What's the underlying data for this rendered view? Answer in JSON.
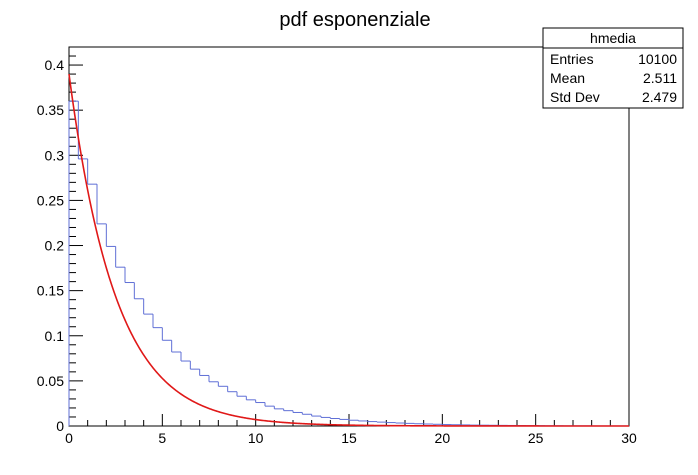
{
  "chart_data": {
    "type": "histogram",
    "title": "pdf esponenziale",
    "xlabel": "",
    "ylabel": "",
    "xlim": [
      0,
      30
    ],
    "ylim": [
      0,
      0.42
    ],
    "x_ticks": [
      "0",
      "5",
      "10",
      "15",
      "20",
      "25",
      "30"
    ],
    "y_ticks": [
      "0",
      "0.05",
      "0.1",
      "0.15",
      "0.2",
      "0.25",
      "0.3",
      "0.35",
      "0.4"
    ],
    "x_tick_values": [
      0,
      5,
      10,
      15,
      20,
      25,
      30
    ],
    "y_tick_values": [
      0,
      0.05,
      0.1,
      0.15,
      0.2,
      0.25,
      0.3,
      0.35,
      0.4
    ],
    "grid": false,
    "histogram": {
      "bin_width": 0.5,
      "values": [
        0.36,
        0.296,
        0.268,
        0.224,
        0.199,
        0.176,
        0.159,
        0.141,
        0.124,
        0.109,
        0.095,
        0.082,
        0.072,
        0.063,
        0.056,
        0.049,
        0.044,
        0.038,
        0.033,
        0.029,
        0.026,
        0.022,
        0.019,
        0.017,
        0.015,
        0.013,
        0.011,
        0.0095,
        0.0083,
        0.0073,
        0.0064,
        0.0056,
        0.0049,
        0.0043,
        0.0038,
        0.0033,
        0.0029,
        0.0025,
        0.0022,
        0.0019,
        0.0016,
        0.0014,
        0.0012,
        0.001,
        0.0009,
        0.0008,
        0.0007,
        0.0006,
        0.0005,
        0.0004,
        0.0004,
        0.0003,
        0.0003,
        0.0002,
        0.0002,
        0.0002,
        0.0001,
        0.0001,
        0.0001,
        0.0001
      ],
      "color": "#5f6fd6"
    },
    "fit": {
      "function": "exponential",
      "amplitude": 0.39,
      "tau": 2.5,
      "color": "#e01818"
    },
    "stats_box": {
      "name": "hmedia",
      "entries_label": "Entries",
      "entries_value": "10100",
      "mean_label": "Mean",
      "mean_value": "2.511",
      "stddev_label": "Std Dev",
      "stddev_value": "2.479"
    }
  }
}
